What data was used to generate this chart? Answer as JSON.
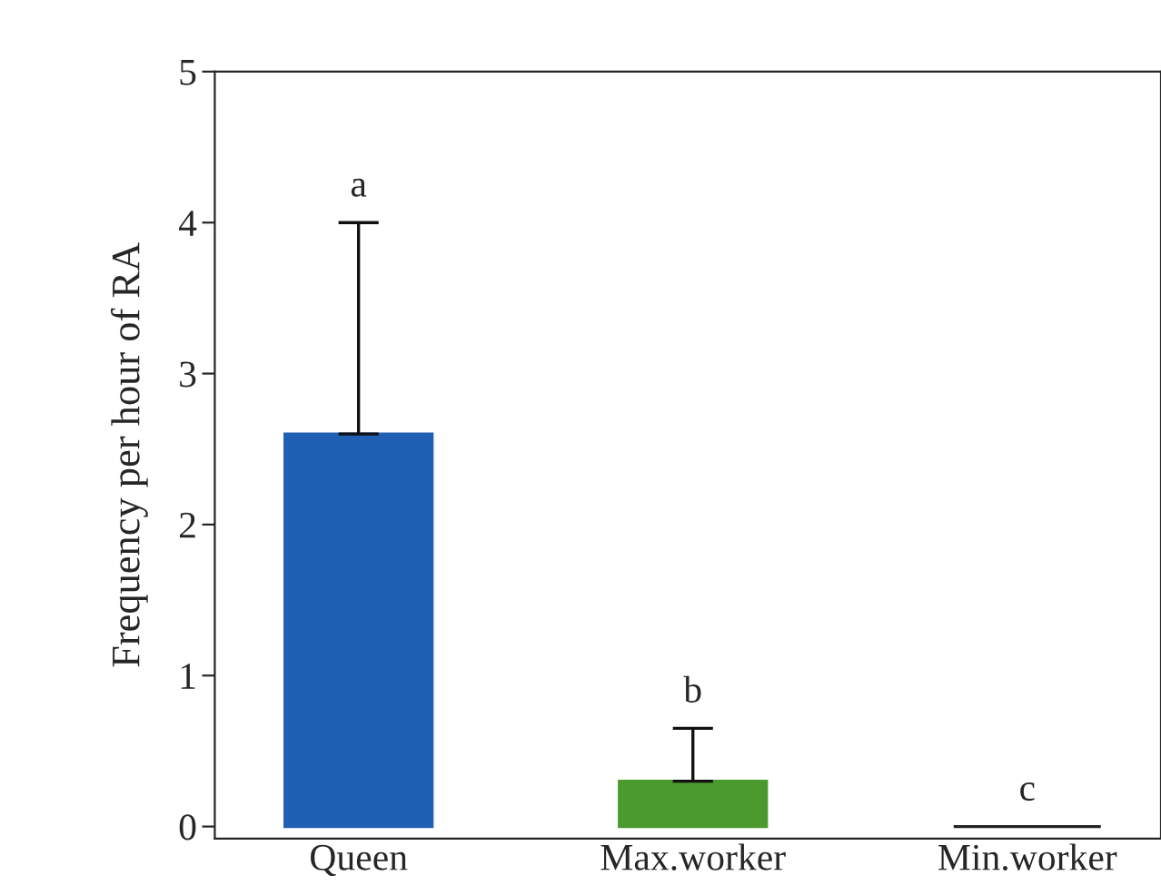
{
  "chart_data": {
    "type": "bar",
    "ylabel": "Frequency per hour of RA",
    "categories": [
      "Queen",
      "Max.worker",
      "Min.worker"
    ],
    "values": [
      2.6,
      0.3,
      0
    ],
    "colors": [
      "#1f5fb4",
      "#4a9a2e",
      "#222222"
    ],
    "errors": [
      [
        2.6,
        4.0
      ],
      [
        0.3,
        0.65
      ],
      null
    ],
    "ylim": [
      -0.08,
      5
    ],
    "yticks": [
      0,
      1,
      2,
      3,
      4,
      5
    ],
    "grid": false,
    "annotations": [
      "a",
      "b",
      "c"
    ]
  }
}
